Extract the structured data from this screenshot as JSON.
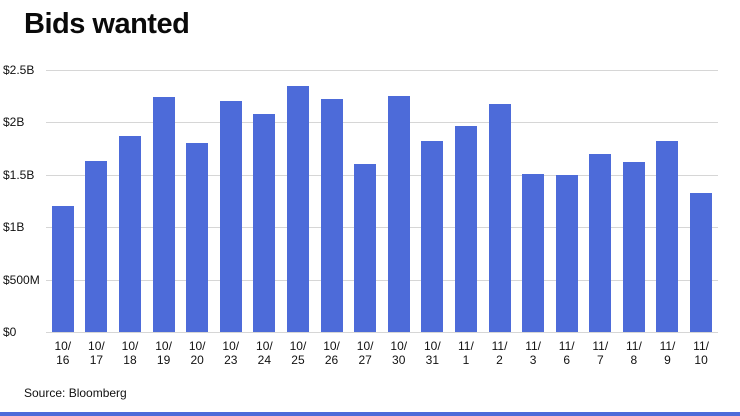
{
  "chart": {
    "title": "Bids wanted",
    "source": "Source: Bloomberg"
  },
  "colors": {
    "bar": "#4d6bd9",
    "grid": "#d6d6d6",
    "bottom_rule": "#4d6bd9"
  },
  "chart_data": {
    "type": "bar",
    "title": "Bids wanted",
    "xlabel": "",
    "ylabel": "",
    "ylim": [
      0,
      2.5
    ],
    "y_unit": "billions USD",
    "grid": true,
    "y_ticks": [
      {
        "value": 0,
        "label": "$0"
      },
      {
        "value": 0.5,
        "label": "$500M"
      },
      {
        "value": 1,
        "label": "$1B"
      },
      {
        "value": 1.5,
        "label": "$1.5B"
      },
      {
        "value": 2,
        "label": "$2B"
      },
      {
        "value": 2.5,
        "label": "$2.5B"
      }
    ],
    "categories": [
      "10/16",
      "10/17",
      "10/18",
      "10/19",
      "10/20",
      "10/23",
      "10/24",
      "10/25",
      "10/26",
      "10/27",
      "10/30",
      "10/31",
      "11/1",
      "11/2",
      "11/3",
      "11/6",
      "11/7",
      "11/8",
      "11/9",
      "11/10"
    ],
    "values": [
      1.2,
      1.63,
      1.87,
      2.24,
      1.8,
      2.2,
      2.08,
      2.35,
      2.22,
      1.6,
      2.25,
      1.82,
      1.97,
      2.18,
      1.51,
      1.5,
      1.7,
      1.62,
      1.82,
      1.33
    ],
    "source": "Source: Bloomberg",
    "legend": null
  }
}
